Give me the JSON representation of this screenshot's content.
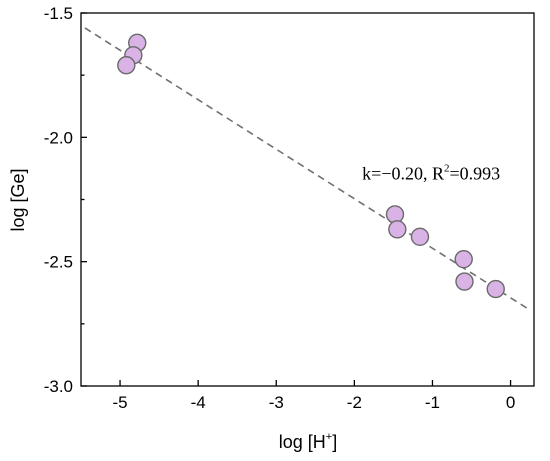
{
  "chart_data": {
    "type": "scatter",
    "xlabel": "log [H",
    "xlabel_sup": "+",
    "xlabel_close": "]",
    "ylabel": "log [Ge]",
    "xlim": [
      -5.5,
      0.3
    ],
    "ylim": [
      -3.0,
      -1.5
    ],
    "x_ticks": [
      -5,
      -4,
      -3,
      -2,
      -1,
      0
    ],
    "x_tick_labels": [
      "-5",
      "-4",
      "-3",
      "-2",
      "-1",
      "0"
    ],
    "y_ticks": [
      -1.5,
      -2.0,
      -2.5,
      -3.0
    ],
    "y_tick_labels": [
      "-1.5",
      "-2.0",
      "-2.5",
      "-3.0"
    ],
    "grid": false,
    "series": [
      {
        "marker_color": "#d9b3e6",
        "x": [
          -4.78,
          -4.83,
          -4.92,
          -1.48,
          -1.45,
          -1.16,
          -0.6,
          -0.59,
          -0.19
        ],
        "y": [
          -1.62,
          -1.67,
          -1.71,
          -2.31,
          -2.37,
          -2.4,
          -2.49,
          -2.58,
          -2.61
        ]
      }
    ],
    "fit_line": {
      "x": [
        -5.45,
        0.25
      ],
      "y": [
        -1.56,
        -2.695
      ],
      "color": "#707070",
      "style": "dashed"
    },
    "annotation": {
      "k_text": "k=−0.20, R",
      "sup": "2",
      "r_text": "=0.993",
      "x": -1.9,
      "y": -2.17
    }
  }
}
